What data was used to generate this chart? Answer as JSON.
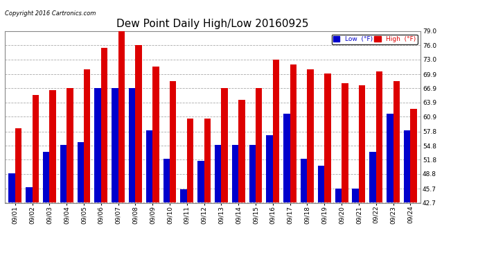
{
  "title": "Dew Point Daily High/Low 20160925",
  "copyright": "Copyright 2016 Cartronics.com",
  "dates": [
    "09/01",
    "09/02",
    "09/03",
    "09/04",
    "09/05",
    "09/06",
    "09/07",
    "09/08",
    "09/09",
    "09/10",
    "09/11",
    "09/12",
    "09/13",
    "09/14",
    "09/15",
    "09/16",
    "09/17",
    "09/18",
    "09/19",
    "09/20",
    "09/21",
    "09/22",
    "09/23",
    "09/24"
  ],
  "low_values": [
    49.0,
    46.0,
    53.5,
    55.0,
    55.5,
    67.0,
    67.0,
    67.0,
    58.0,
    52.0,
    45.5,
    51.5,
    55.0,
    55.0,
    55.0,
    57.0,
    61.5,
    52.0,
    50.5,
    45.7,
    45.7,
    53.5,
    61.5,
    58.0
  ],
  "high_values": [
    58.5,
    65.5,
    66.5,
    67.0,
    71.0,
    75.5,
    79.5,
    76.0,
    71.5,
    68.5,
    60.5,
    60.5,
    67.0,
    64.5,
    67.0,
    73.0,
    72.0,
    71.0,
    70.0,
    68.0,
    67.5,
    70.5,
    68.5,
    62.5
  ],
  "low_color": "#0000cc",
  "high_color": "#dd0000",
  "bg_color": "#ffffff",
  "plot_bg_color": "#ffffff",
  "grid_color": "#aaaaaa",
  "ylim_min": 42.7,
  "ylim_max": 79.0,
  "yticks": [
    42.7,
    45.7,
    48.8,
    51.8,
    54.8,
    57.8,
    60.9,
    63.9,
    66.9,
    69.9,
    73.0,
    76.0,
    79.0
  ],
  "bar_width": 0.38,
  "legend_low_label": "Low  (°F)",
  "legend_high_label": "High  (°F)",
  "title_fontsize": 11,
  "tick_fontsize": 6.5,
  "copyright_fontsize": 6
}
